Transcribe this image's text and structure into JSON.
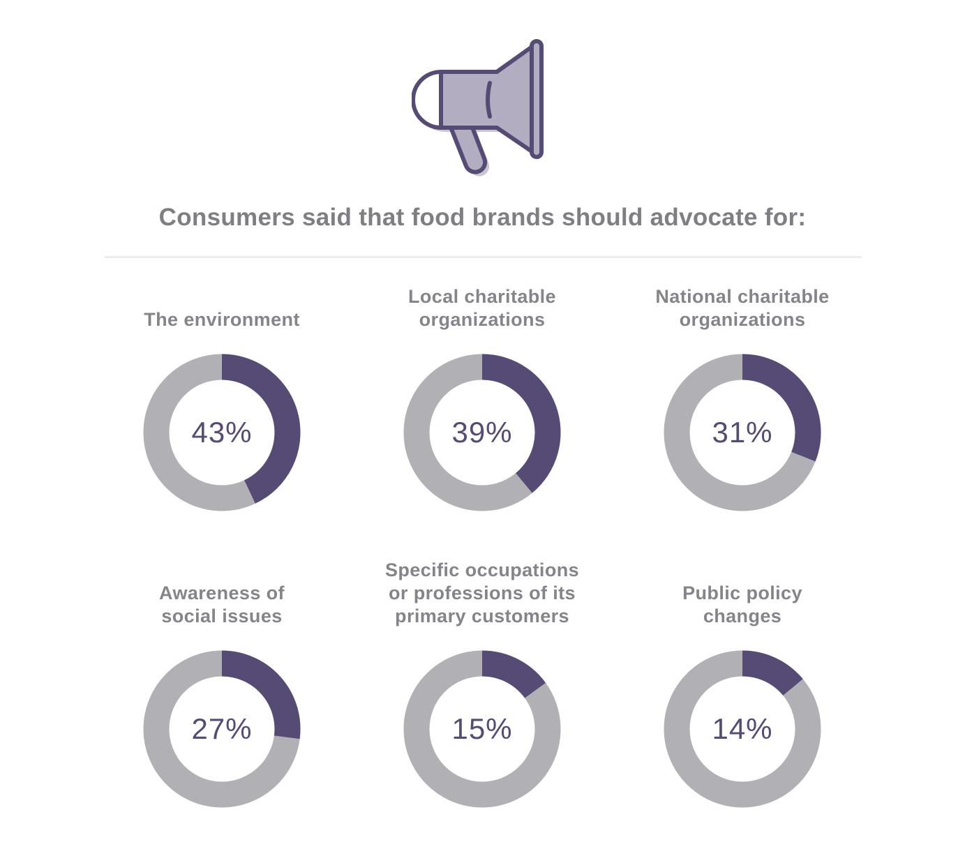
{
  "headline": "Consumers said that food brands should advocate for:",
  "colors": {
    "filled": "#554b75",
    "remainder": "#b1b1b5",
    "icon_fill": "#b3adc1",
    "icon_stroke": "#554b75",
    "icon_shadow": "#c9c6cf"
  },
  "icon": "megaphone-icon",
  "chart_data": {
    "type": "pie",
    "title": "Consumers said that food brands should advocate for:",
    "unit": "%",
    "categories": [
      "The environment",
      "Local charitable\norganizations",
      "National charitable\norganizations",
      "Awareness of\nsocial issues",
      "Specific occupations\nor professions of its\nprimary customers",
      "Public policy\nchanges"
    ],
    "values": [
      43,
      39,
      31,
      27,
      15,
      14
    ],
    "value_labels": [
      "43%",
      "39%",
      "31%",
      "27%",
      "15%",
      "14%"
    ]
  }
}
